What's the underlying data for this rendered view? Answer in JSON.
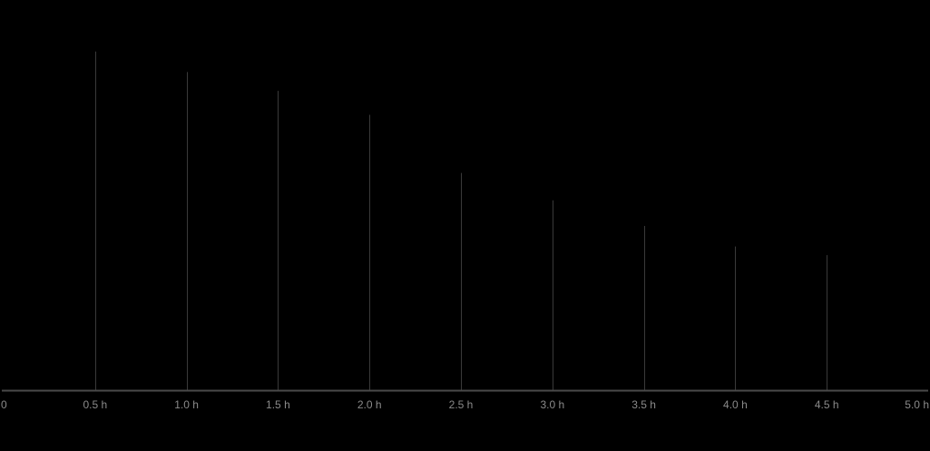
{
  "chart_data": {
    "type": "bar",
    "title": "",
    "xlabel": "",
    "ylabel": "",
    "x_ticks": [
      {
        "value": 0,
        "label": "0"
      },
      {
        "value": 0.5,
        "label": "0.5 h"
      },
      {
        "value": 1.0,
        "label": "1.0 h"
      },
      {
        "value": 1.5,
        "label": "1.5 h"
      },
      {
        "value": 2.0,
        "label": "2.0 h"
      },
      {
        "value": 2.5,
        "label": "2.5 h"
      },
      {
        "value": 3.0,
        "label": "3.0 h"
      },
      {
        "value": 3.5,
        "label": "3.5 h"
      },
      {
        "value": 4.0,
        "label": "4.0 h"
      },
      {
        "value": 4.5,
        "label": "4.5 h"
      },
      {
        "value": 5.0,
        "label": "5.0 h"
      }
    ],
    "x": [
      0.5,
      1.0,
      1.5,
      2.0,
      2.5,
      3.0,
      3.5,
      4.0,
      4.5
    ],
    "values": [
      0.99,
      0.93,
      0.875,
      0.805,
      0.635,
      0.555,
      0.48,
      0.42,
      0.395
    ],
    "xlim": [
      0,
      5.0
    ],
    "ylim": [
      0,
      1.0
    ],
    "grid": false,
    "legend": "none",
    "colors": {
      "background": "#000000",
      "bar": "#3a3a3a",
      "axis": "#4a4a4a",
      "tick_text": "#8a8a8a"
    }
  }
}
